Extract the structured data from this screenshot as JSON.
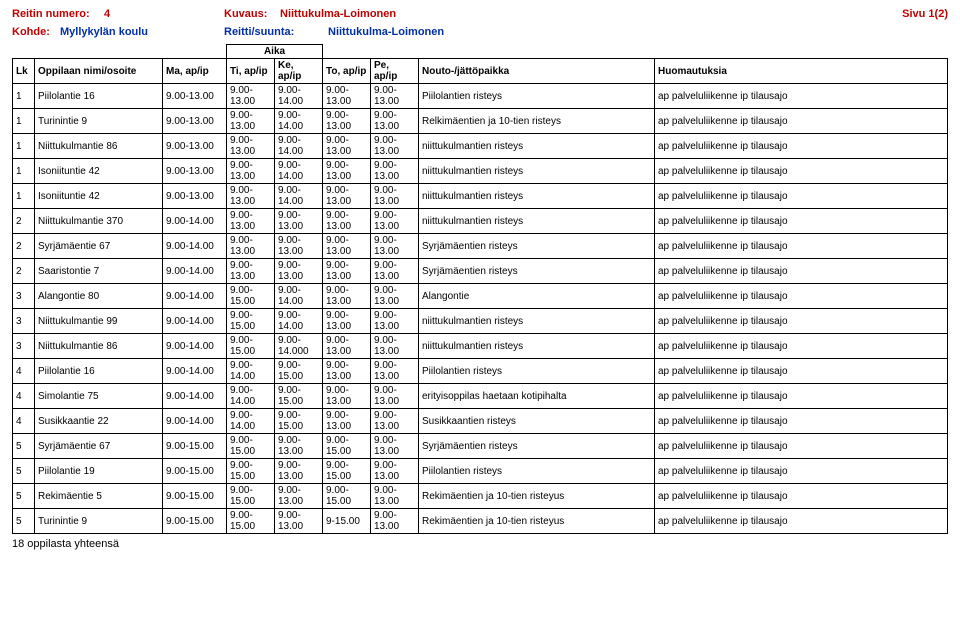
{
  "header": {
    "reitin_label": "Reitin numero:",
    "reitin_value": "4",
    "kuvaus_label": "Kuvaus:",
    "kuvaus_value": "Niittukulma-Loimonen",
    "sivu": "Sivu 1(2)",
    "kohde_label": "Kohde:",
    "kohde_value": "Myllykylän koulu",
    "reitti_label": "Reitti/suunta:",
    "reitti_value": "Niittukulma-Loimonen"
  },
  "cols": {
    "aika": "Aika",
    "lk": "Lk",
    "name": "Oppilaan nimi/osoite",
    "ma": "Ma, ap/ip",
    "ti": "Ti, ap/ip",
    "ke": "Ke, ap/ip",
    "to": "To, ap/ip",
    "pe": "Pe, ap/ip",
    "nouto": "Nouto-/jättöpaikka",
    "huom": "Huomautuksia"
  },
  "rows": [
    {
      "lk": "1",
      "name": "Piilolantie 16",
      "ma": "9.00-13.00",
      "ti": "9.00-13.00",
      "ke": "9.00-14.00",
      "to": "9.00-13.00",
      "pe": "9.00-13.00",
      "nouto": "Piilolantien risteys",
      "huom": "ap palveluliikenne ip tilausajo"
    },
    {
      "lk": "1",
      "name": "Turinintie 9",
      "ma": "9.00-13.00",
      "ti": "9.00-13.00",
      "ke": "9.00-14.00",
      "to": "9.00-13.00",
      "pe": "9.00-13.00",
      "nouto": "Relkimäentien ja 10-tien risteys",
      "huom": "ap palveluliikenne ip tilausajo"
    },
    {
      "lk": "1",
      "name": "Niittukulmantie 86",
      "ma": "9.00-13.00",
      "ti": "9.00-13.00",
      "ke": "9.00-14.00",
      "to": "9.00-13.00",
      "pe": "9.00-13.00",
      "nouto": "niittukulmantien risteys",
      "huom": "ap palveluliikenne ip tilausajo"
    },
    {
      "lk": "1",
      "name": "Isoniituntie 42",
      "ma": "9.00-13.00",
      "ti": "9.00-13.00",
      "ke": "9.00-14.00",
      "to": "9.00-13.00",
      "pe": "9.00-13.00",
      "nouto": "niittukulmantien risteys",
      "huom": "ap palveluliikenne ip tilausajo"
    },
    {
      "lk": "1",
      "name": "Isoniituntie 42",
      "ma": "9.00-13.00",
      "ti": "9.00-13.00",
      "ke": "9.00-14.00",
      "to": "9.00-13.00",
      "pe": "9.00-13.00",
      "nouto": "niittukulmantien risteys",
      "huom": "ap palveluliikenne ip tilausajo"
    },
    {
      "lk": "2",
      "name": "Niittukulmantie 370",
      "ma": "9.00-14.00",
      "ti": "9.00-13.00",
      "ke": "9.00-13.00",
      "to": "9.00-13.00",
      "pe": "9.00-13.00",
      "nouto": "niittukulmantien risteys",
      "huom": "ap palveluliikenne ip tilausajo"
    },
    {
      "lk": "2",
      "name": "Syrjämäentie 67",
      "ma": "9.00-14.00",
      "ti": "9.00-13.00",
      "ke": "9.00-13.00",
      "to": "9.00-13.00",
      "pe": "9.00-13.00",
      "nouto": "Syrjämäentien risteys",
      "huom": "ap palveluliikenne ip tilausajo"
    },
    {
      "lk": "2",
      "name": "Saaristontie 7",
      "ma": "9.00-14.00",
      "ti": "9.00-13.00",
      "ke": "9.00-13.00",
      "to": "9.00-13.00",
      "pe": "9.00-13.00",
      "nouto": "Syrjämäentien risteys",
      "huom": "ap palveluliikenne ip tilausajo"
    },
    {
      "lk": "3",
      "name": "Alangontie 80",
      "ma": "9.00-14.00",
      "ti": "9.00-15.00",
      "ke": "9.00-14.00",
      "to": "9.00-13.00",
      "pe": "9.00-13.00",
      "nouto": "Alangontie",
      "huom": "ap palveluliikenne ip tilausajo"
    },
    {
      "lk": "3",
      "name": "Niittukulmantie 99",
      "ma": "9.00-14.00",
      "ti": "9.00-15.00",
      "ke": "9.00-14.00",
      "to": "9.00-13.00",
      "pe": "9.00-13.00",
      "nouto": "niittukulmantien risteys",
      "huom": "ap palveluliikenne ip tilausajo"
    },
    {
      "lk": "3",
      "name": "Niittukulmantie 86",
      "ma": "9.00-14.00",
      "ti": "9.00-15.00",
      "ke": "9.00-14.000",
      "to": "9.00-13.00",
      "pe": "9.00-13.00",
      "nouto": "niittukulmantien risteys",
      "huom": "ap palveluliikenne ip tilausajo"
    },
    {
      "lk": "4",
      "name": "Piilolantie 16",
      "ma": "9.00-14.00",
      "ti": "9.00-14.00",
      "ke": "9.00-15.00",
      "to": "9.00-13.00",
      "pe": "9.00-13.00",
      "nouto": "Piilolantien risteys",
      "huom": "ap palveluliikenne ip tilausajo"
    },
    {
      "lk": "4",
      "name": "Simolantie 75",
      "ma": "9.00-14.00",
      "ti": "9.00-14.00",
      "ke": "9.00-15.00",
      "to": "9.00-13.00",
      "pe": "9.00-13.00",
      "nouto": "erityisoppilas haetaan kotipihalta",
      "huom": "ap palveluliikenne ip tilausajo"
    },
    {
      "lk": "4",
      "name": "Susikkaantie 22",
      "ma": "9.00-14.00",
      "ti": "9.00-14.00",
      "ke": "9.00-15.00",
      "to": "9.00-13.00",
      "pe": "9.00-13.00",
      "nouto": "Susikkaantien risteys",
      "huom": "ap palveluliikenne ip tilausajo"
    },
    {
      "lk": "5",
      "name": "Syrjämäentie 67",
      "ma": "9.00-15.00",
      "ti": "9.00-15.00",
      "ke": "9.00-13.00",
      "to": "9.00-15.00",
      "pe": "9.00-13.00",
      "nouto": "Syrjämäentien risteys",
      "huom": "ap palveluliikenne ip tilausajo"
    },
    {
      "lk": "5",
      "name": "Piilolantie 19",
      "ma": "9.00-15.00",
      "ti": "9.00-15.00",
      "ke": "9.00-13.00",
      "to": "9.00-15.00",
      "pe": "9.00-13.00",
      "nouto": "Piilolantien risteys",
      "huom": "ap palveluliikenne ip tilausajo"
    },
    {
      "lk": "5",
      "name": "Rekimäentie 5",
      "ma": "9.00-15.00",
      "ti": "9.00-15.00",
      "ke": "9.00-13.00",
      "to": "9.00-15.00",
      "pe": "9.00-13.00",
      "nouto": "Rekimäentien  ja 10-tien risteyus",
      "huom": "ap palveluliikenne ip tilausajo"
    },
    {
      "lk": "5",
      "name": "Turinintie 9",
      "ma": "9.00-15.00",
      "ti": "9.00-15.00",
      "ke": "9.00-13.00",
      "to": "9-15.00",
      "pe": "9.00-13.00",
      "nouto": "Rekimäentien  ja 10-tien risteyus",
      "huom": "ap palveluliikenne ip tilausajo"
    }
  ],
  "footer": "18 oppilasta yhteensä"
}
